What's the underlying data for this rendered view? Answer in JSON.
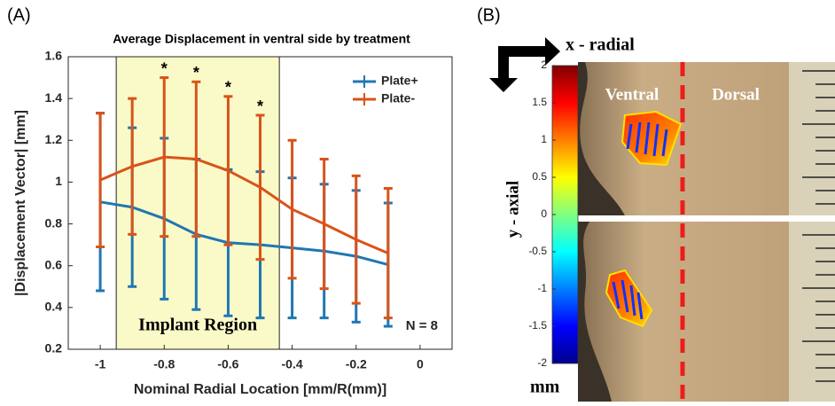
{
  "chart_data": [
    {
      "type": "line",
      "panel_label": "(A)",
      "title": "Average Displacement in ventral side by treatment",
      "x_label": "Nominal Radial Location [mm/R(mm)]",
      "y_label": "|Displacement Vector| [mm]",
      "x": [
        -1,
        -0.9,
        -0.8,
        -0.7,
        -0.6,
        -0.5,
        -0.4,
        -0.3,
        -0.2,
        -0.1
      ],
      "series": [
        {
          "name": "Plate+",
          "color": "#1f77b4",
          "values": [
            0.905,
            0.88,
            0.825,
            0.75,
            0.71,
            0.7,
            0.685,
            0.67,
            0.645,
            0.605
          ],
          "errors": [
            0.425,
            0.38,
            0.385,
            0.36,
            0.35,
            0.35,
            0.335,
            0.32,
            0.315,
            0.295
          ]
        },
        {
          "name": "Plate-",
          "color": "#d95319",
          "values": [
            1.01,
            1.075,
            1.12,
            1.11,
            1.055,
            0.975,
            0.87,
            0.8,
            0.725,
            0.66
          ],
          "errors": [
            0.32,
            0.325,
            0.38,
            0.37,
            0.355,
            0.345,
            0.33,
            0.31,
            0.305,
            0.31
          ]
        }
      ],
      "region": {
        "label": "Implant Region",
        "x": [
          -0.95,
          -0.44
        ],
        "color": "#fafac8"
      },
      "annotations": [
        {
          "text": "*",
          "x": -0.8
        },
        {
          "text": "*",
          "x": -0.7
        },
        {
          "text": "*",
          "x": -0.6
        },
        {
          "text": "*",
          "x": -0.5
        }
      ],
      "note": "N =  8",
      "xlim": [
        -1.1,
        0.1
      ],
      "xticks": [
        -1,
        -0.8,
        -0.6,
        -0.4,
        -0.2,
        0
      ],
      "ylim": [
        0.2,
        1.6
      ],
      "yticks": [
        0.2,
        0.4,
        0.6,
        0.8,
        1,
        1.2,
        1.4,
        1.6
      ],
      "legend": "top-right",
      "grid": false
    },
    {
      "type": "colorbar",
      "panel_label": "(B)",
      "x_label": "x - radial",
      "y_label": "y - axial",
      "unit": "mm",
      "regions": [
        "Ventral",
        "Dorsal"
      ],
      "lim": [
        -2,
        2
      ],
      "ticks": [
        2,
        1.5,
        1,
        0.5,
        0,
        -0.5,
        -1,
        -1.5,
        -2
      ]
    }
  ]
}
